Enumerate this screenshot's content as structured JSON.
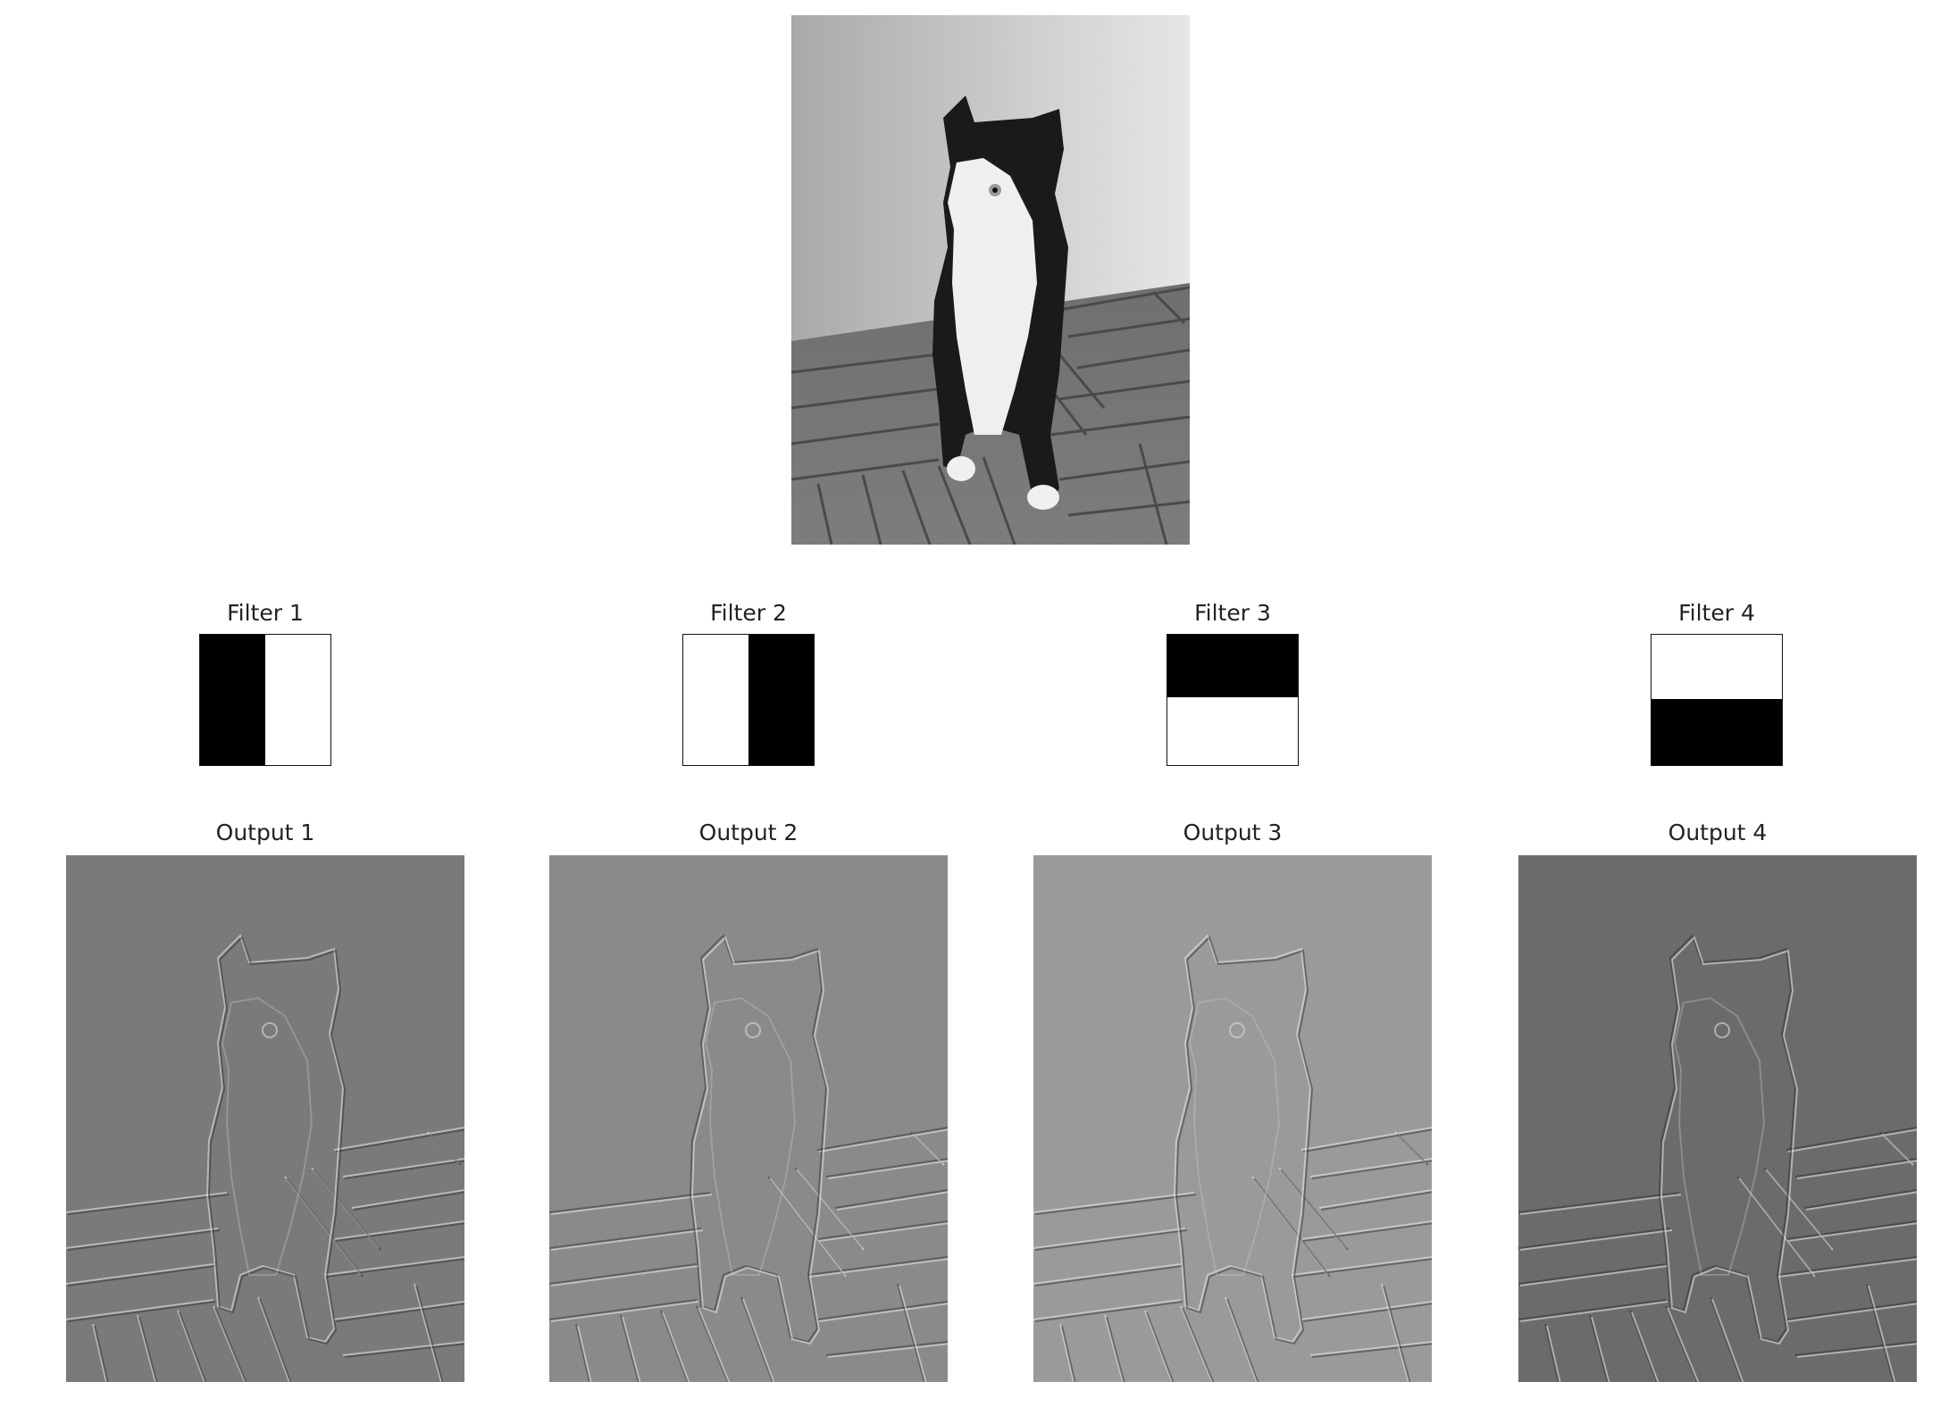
{
  "input_image": {
    "description_icon": "cat-photo-grayscale"
  },
  "filters": [
    {
      "title": "Filter 1",
      "dark_half": "left"
    },
    {
      "title": "Filter 2",
      "dark_half": "right"
    },
    {
      "title": "Filter 3",
      "dark_half": "top"
    },
    {
      "title": "Filter 4",
      "dark_half": "bottom"
    }
  ],
  "outputs": [
    {
      "title": "Output 1",
      "bg_color": "#7a7a7a"
    },
    {
      "title": "Output 2",
      "bg_color": "#8a8a8a"
    },
    {
      "title": "Output 3",
      "bg_color": "#9a9a9a"
    },
    {
      "title": "Output 4",
      "bg_color": "#6b6b6b"
    }
  ]
}
